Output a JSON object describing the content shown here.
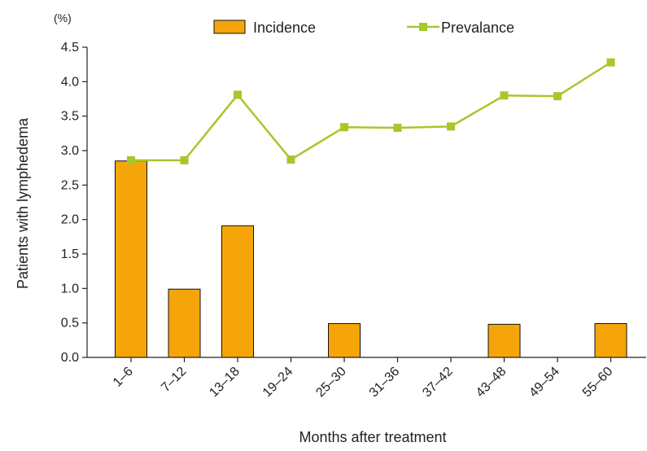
{
  "chart_data": {
    "type": "bar",
    "title": "",
    "xlabel": "Months after treatment",
    "ylabel": "Patients with lymphedema",
    "yunit": "(%)",
    "ylim": [
      0,
      4.5
    ],
    "yticks": [
      "0.0",
      "0.5",
      "1.0",
      "1.5",
      "2.0",
      "2.5",
      "3.0",
      "3.5",
      "4.0",
      "4.5"
    ],
    "categories": [
      "1–6",
      "7–12",
      "13–18",
      "19–24",
      "25–30",
      "31–36",
      "37–42",
      "43–48",
      "49–54",
      "55–60"
    ],
    "grid": false,
    "legend_position": "top",
    "series": [
      {
        "name": "Incidence",
        "type": "bar",
        "color": "#F5A50A",
        "values": [
          2.85,
          0.99,
          1.91,
          0,
          0.49,
          0,
          0,
          0.48,
          0,
          0.49
        ]
      },
      {
        "name": "Prevalance",
        "type": "line",
        "color": "#A6C82B",
        "values": [
          2.86,
          2.86,
          3.81,
          2.87,
          3.34,
          3.33,
          3.35,
          3.8,
          3.79,
          4.28
        ]
      }
    ]
  }
}
